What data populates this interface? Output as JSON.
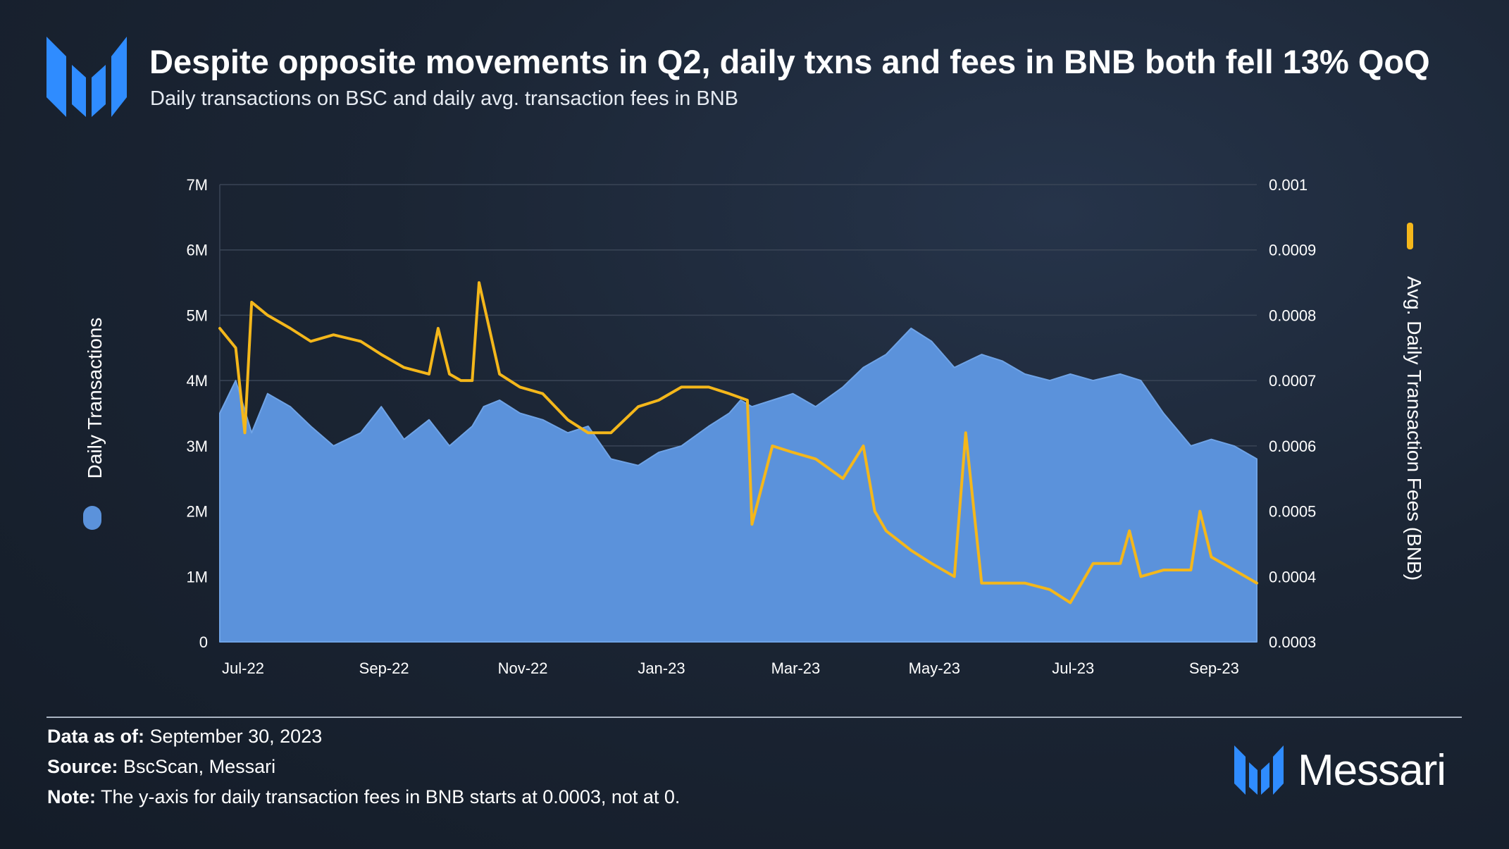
{
  "header": {
    "logo": "messari-logo-icon",
    "title": "Despite opposite movements in Q2, daily txns and fees in BNB both fell 13% QoQ",
    "subtitle": "Daily transactions on BSC and daily avg. transaction fees in BNB"
  },
  "footer": {
    "data_as_of_label": "Data as of:",
    "data_as_of_value": " September 30, 2023",
    "source_label": "Source:",
    "source_value": " BscScan, Messari",
    "note_label": "Note:",
    "note_value": " The y-axis for daily transaction fees in BNB starts at 0.0003, not at 0."
  },
  "brand": {
    "name": "Messari",
    "icon": "messari-logo-icon"
  },
  "colors": {
    "transactions": "#5b92db",
    "fees": "#f4b71b",
    "grid": "#3a4556",
    "background": "#1b2534"
  },
  "chart_data": {
    "type": "area",
    "title": "Despite opposite movements in Q2, daily txns and fees in BNB both fell 13% QoQ",
    "subtitle": "Daily transactions on BSC and daily avg. transaction fees in BNB",
    "x_range": [
      "2022-07-01",
      "2023-09-30"
    ],
    "x_ticks": [
      "Jul-22",
      "Sep-22",
      "Nov-22",
      "Jan-23",
      "Mar-23",
      "May-23",
      "Jul-23",
      "Sep-23"
    ],
    "y_left": {
      "label": "Daily Transactions",
      "range": [
        0,
        7000000
      ],
      "ticks": [
        "0",
        "1M",
        "2M",
        "3M",
        "4M",
        "5M",
        "6M",
        "7M"
      ]
    },
    "y_right": {
      "label": "Avg. Daily Transaction Fees (BNB)",
      "range": [
        0.0003,
        0.001
      ],
      "ticks": [
        "0.0003",
        "0.0004",
        "0.0005",
        "0.0006",
        "0.0007",
        "0.0008",
        "0.0009",
        "0.001"
      ]
    },
    "grid": true,
    "legend": "axis-titles",
    "series": [
      {
        "name": "Daily Transactions",
        "axis": "left",
        "type": "area",
        "x": [
          "2022-07-01",
          "2022-07-08",
          "2022-07-15",
          "2022-07-22",
          "2022-08-01",
          "2022-08-10",
          "2022-08-20",
          "2022-09-01",
          "2022-09-10",
          "2022-09-20",
          "2022-10-01",
          "2022-10-10",
          "2022-10-20",
          "2022-10-25",
          "2022-11-01",
          "2022-11-10",
          "2022-11-20",
          "2022-12-01",
          "2022-12-10",
          "2022-12-20",
          "2023-01-01",
          "2023-01-10",
          "2023-01-20",
          "2023-02-01",
          "2023-02-10",
          "2023-02-15",
          "2023-02-20",
          "2023-03-01",
          "2023-03-10",
          "2023-03-20",
          "2023-04-01",
          "2023-04-10",
          "2023-04-20",
          "2023-05-01",
          "2023-05-10",
          "2023-05-20",
          "2023-06-01",
          "2023-06-10",
          "2023-06-20",
          "2023-07-01",
          "2023-07-10",
          "2023-07-20",
          "2023-08-01",
          "2023-08-10",
          "2023-08-20",
          "2023-09-01",
          "2023-09-10",
          "2023-09-20",
          "2023-09-30"
        ],
        "values": [
          3500000,
          4000000,
          3200000,
          3800000,
          3600000,
          3300000,
          3000000,
          3200000,
          3600000,
          3100000,
          3400000,
          3000000,
          3300000,
          3600000,
          3700000,
          3500000,
          3400000,
          3200000,
          3300000,
          2800000,
          2700000,
          2900000,
          3000000,
          3300000,
          3500000,
          3700000,
          3600000,
          3700000,
          3800000,
          3600000,
          3900000,
          4200000,
          4400000,
          4800000,
          4600000,
          4200000,
          4400000,
          4300000,
          4100000,
          4000000,
          4100000,
          4000000,
          4100000,
          4000000,
          3500000,
          3000000,
          3100000,
          3000000,
          2800000
        ]
      },
      {
        "name": "Avg. Daily Transaction Fees (BNB)",
        "axis": "right",
        "type": "line",
        "x": [
          "2022-07-01",
          "2022-07-08",
          "2022-07-12",
          "2022-07-15",
          "2022-07-22",
          "2022-08-01",
          "2022-08-10",
          "2022-08-20",
          "2022-09-01",
          "2022-09-10",
          "2022-09-20",
          "2022-10-01",
          "2022-10-05",
          "2022-10-10",
          "2022-10-15",
          "2022-10-20",
          "2022-10-23",
          "2022-11-01",
          "2022-11-10",
          "2022-11-20",
          "2022-12-01",
          "2022-12-10",
          "2022-12-20",
          "2023-01-01",
          "2023-01-10",
          "2023-01-20",
          "2023-02-01",
          "2023-02-10",
          "2023-02-18",
          "2023-02-20",
          "2023-03-01",
          "2023-03-10",
          "2023-03-20",
          "2023-04-01",
          "2023-04-10",
          "2023-04-15",
          "2023-04-20",
          "2023-05-01",
          "2023-05-10",
          "2023-05-20",
          "2023-05-25",
          "2023-06-01",
          "2023-06-10",
          "2023-06-20",
          "2023-07-01",
          "2023-07-10",
          "2023-07-20",
          "2023-08-01",
          "2023-08-05",
          "2023-08-10",
          "2023-08-20",
          "2023-09-01",
          "2023-09-05",
          "2023-09-10",
          "2023-09-20",
          "2023-09-30"
        ],
        "values": [
          0.00078,
          0.00075,
          0.00062,
          0.00082,
          0.0008,
          0.00078,
          0.00076,
          0.00077,
          0.00076,
          0.00074,
          0.00072,
          0.00071,
          0.00078,
          0.00071,
          0.0007,
          0.0007,
          0.00085,
          0.00071,
          0.00069,
          0.00068,
          0.00064,
          0.00062,
          0.00062,
          0.00066,
          0.00067,
          0.00069,
          0.00069,
          0.00068,
          0.00067,
          0.00048,
          0.0006,
          0.00059,
          0.00058,
          0.00055,
          0.0006,
          0.0005,
          0.00047,
          0.00044,
          0.00042,
          0.0004,
          0.00062,
          0.00039,
          0.00039,
          0.00039,
          0.00038,
          0.00036,
          0.00042,
          0.00042,
          0.00047,
          0.0004,
          0.00041,
          0.00041,
          0.0005,
          0.00043,
          0.00041,
          0.00039
        ]
      }
    ]
  }
}
